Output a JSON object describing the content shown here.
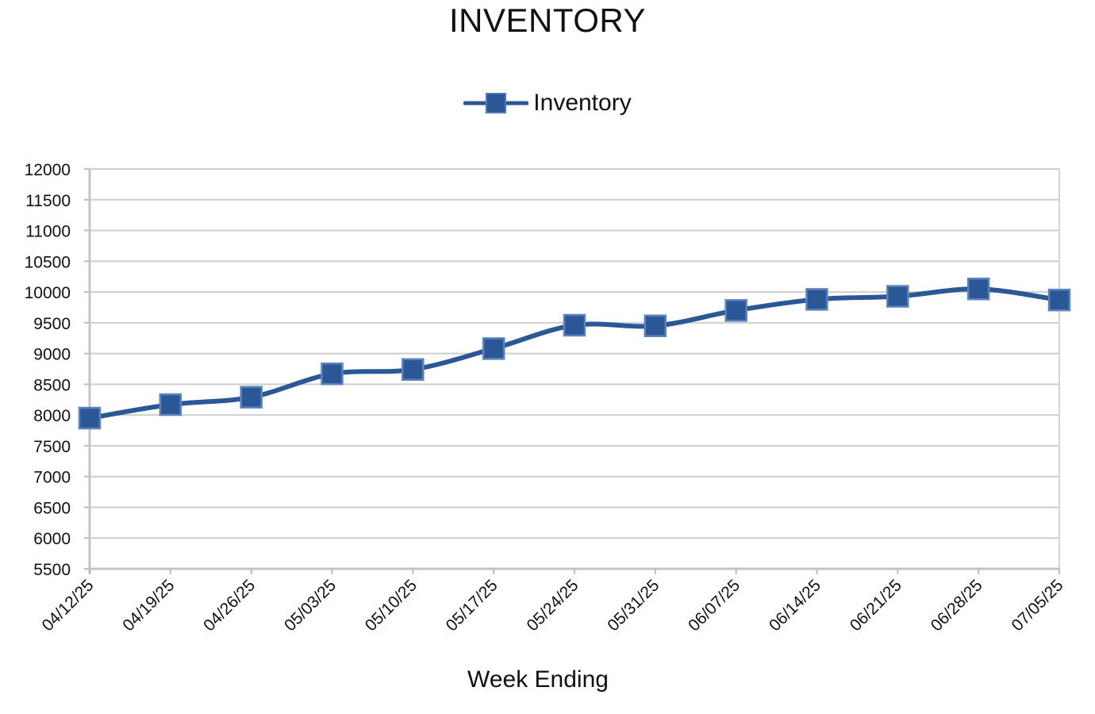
{
  "chart_data": {
    "type": "line",
    "title": "INVENTORY",
    "xlabel": "Week Ending",
    "ylabel": "",
    "categories": [
      "04/12/25",
      "04/19/25",
      "04/26/25",
      "05/03/25",
      "05/10/25",
      "05/17/25",
      "05/24/25",
      "05/31/25",
      "06/07/25",
      "06/14/25",
      "06/21/25",
      "06/28/25",
      "07/05/25"
    ],
    "series": [
      {
        "name": "Inventory",
        "values": [
          7950,
          8170,
          8290,
          8670,
          8740,
          9080,
          9460,
          9450,
          9700,
          9880,
          9930,
          10050,
          9870
        ],
        "color": "#2b5797",
        "marker": "square"
      }
    ],
    "ylim": [
      5500,
      12000
    ],
    "yticks": [
      5500,
      6000,
      6500,
      7000,
      7500,
      8000,
      8500,
      9000,
      9500,
      10000,
      10500,
      11000,
      11500,
      12000
    ],
    "grid": true,
    "legend_position": "top-center"
  }
}
